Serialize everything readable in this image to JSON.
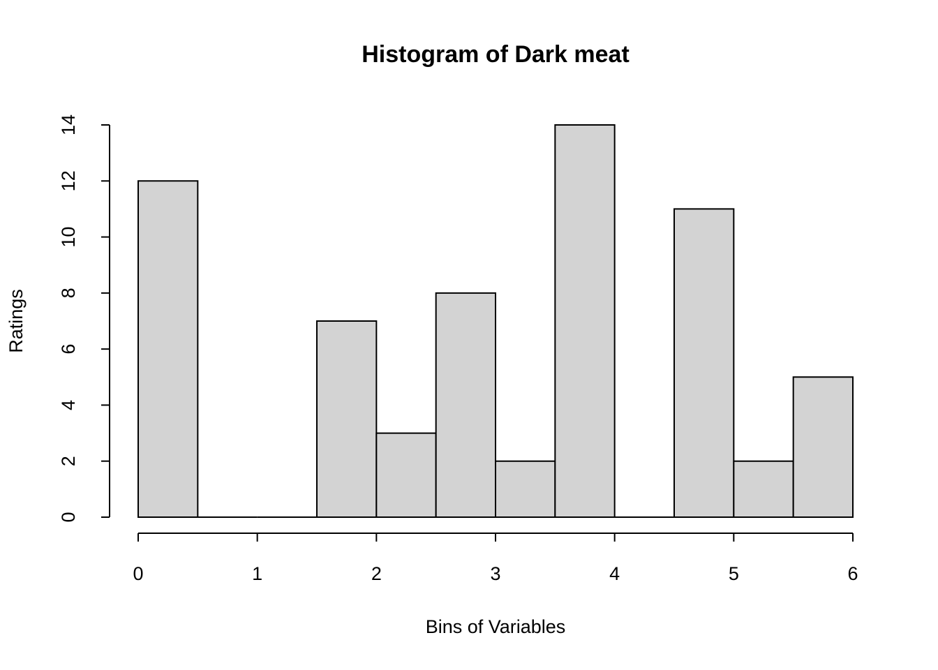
{
  "chart_data": {
    "type": "histogram",
    "title": "Histogram of Dark meat",
    "x_label": "Bins of Variables",
    "y_label": "Ratings",
    "bins": [
      0,
      0.5,
      1,
      1.5,
      2,
      2.5,
      3,
      3.5,
      4,
      4.5,
      5,
      5.5,
      6
    ],
    "values": [
      12,
      0,
      0,
      7,
      3,
      8,
      2,
      14,
      0,
      11,
      2,
      5
    ],
    "color": "#d3d3d3",
    "xlim": [
      0,
      6
    ],
    "xticks": [
      0,
      1,
      2,
      3,
      4,
      5,
      6
    ],
    "ylim": [
      0,
      14
    ],
    "yticks": [
      0,
      2,
      4,
      6,
      8,
      10,
      12,
      14
    ]
  }
}
